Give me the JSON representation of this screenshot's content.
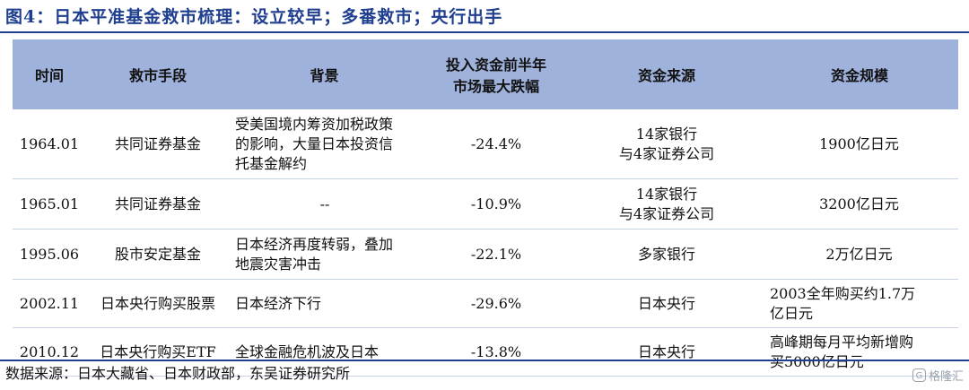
{
  "title": "图4：日本平准基金救市梳理：设立较早；多番救市；央行出手",
  "table": {
    "headers": [
      "时间",
      "救市手段",
      "背景",
      "投入资金前半年\n市场最大跌幅",
      "资金来源",
      "资金规模"
    ],
    "rows": [
      [
        "1964.01",
        "共同证券基金",
        "受美国境内筹资加税政策\n的影响，大量日本投资信\n托基金解约",
        "-24.4%",
        "14家银行\n与4家证券公司",
        "1900亿日元"
      ],
      [
        "1965.01",
        "共同证券基金",
        "--",
        "-10.9%",
        "14家银行\n与4家证券公司",
        "3200亿日元"
      ],
      [
        "1995.06",
        "股市安定基金",
        "日本经济再度转弱，叠加\n地震灾害冲击",
        "-22.1%",
        "多家银行",
        "2万亿日元"
      ],
      [
        "2002.11",
        "日本央行购买股票",
        "日本经济下行",
        "-29.6%",
        "日本央行",
        "2003全年购买约1.7万\n亿日元"
      ],
      [
        "2010.12",
        "日本央行购买ETF",
        "全球金融危机波及日本",
        "-13.8%",
        "日本央行",
        "高峰期每月平均新增购\n买5000亿日元"
      ]
    ]
  },
  "source": "数据来源：日本大藏省、日本财政部，东吴证券研究所",
  "watermark": "格隆汇",
  "colors": {
    "title": "#1f3e8f",
    "header_bg": "#9fb2dc",
    "rule": "#1f3e8f"
  }
}
